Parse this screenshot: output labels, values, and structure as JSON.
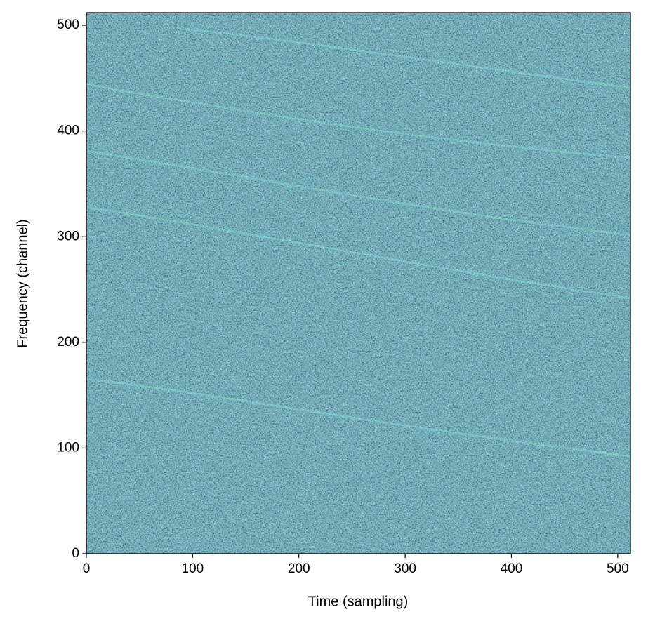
{
  "chart_data": {
    "type": "heatmap",
    "x_label": "Time (sampling)",
    "y_label": "Frequency (channel)",
    "xlim": [
      0,
      512
    ],
    "ylim": [
      0,
      512
    ],
    "xticks": [
      0,
      100,
      200,
      300,
      400,
      500
    ],
    "yticks": [
      0,
      100,
      200,
      300,
      400,
      500
    ]
  }
}
